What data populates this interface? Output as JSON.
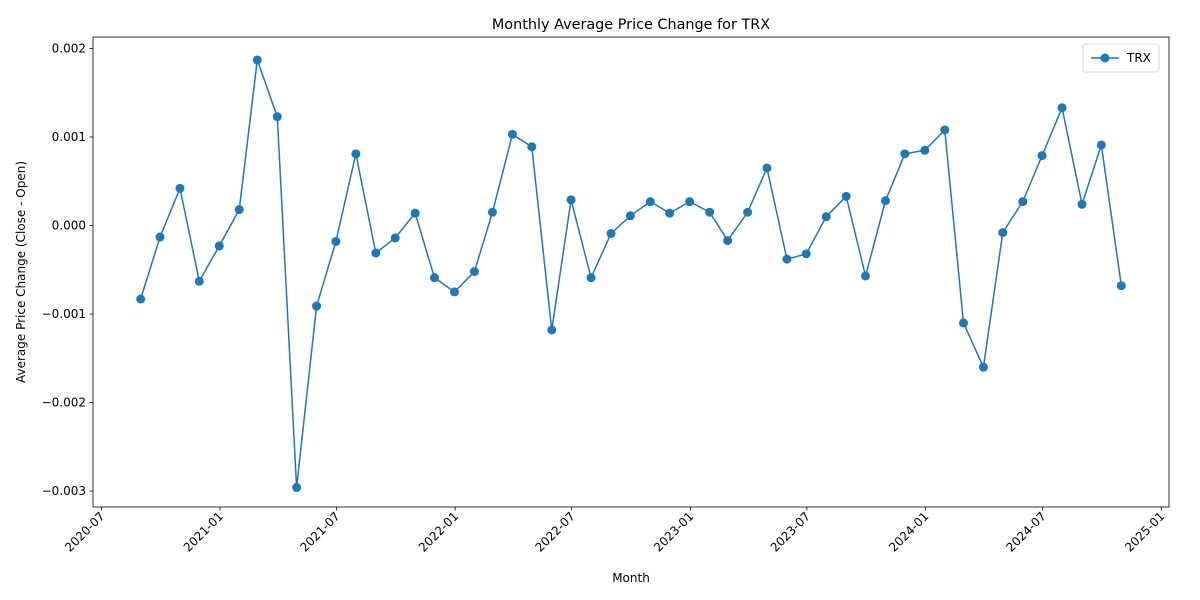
{
  "chart_data": {
    "type": "line",
    "title": "Monthly Average Price Change for TRX",
    "xlabel": "Month",
    "ylabel": "Average Price Change (Close - Open)",
    "x_ticks": [
      "2020-07",
      "2021-01",
      "2021-07",
      "2022-01",
      "2022-07",
      "2023-01",
      "2023-07",
      "2024-01",
      "2024-07",
      "2025-01"
    ],
    "y_ticks": [
      "−0.003",
      "−0.002",
      "−0.001",
      "0.000",
      "0.001",
      "0.002"
    ],
    "y_tick_values": [
      -0.003,
      -0.002,
      -0.001,
      0.0,
      0.001,
      0.002
    ],
    "xlim": [
      "2020-06-18",
      "2025-01-13"
    ],
    "ylim": [
      -0.00318,
      0.00213
    ],
    "legend": {
      "position": "top-right",
      "entries": [
        "TRX"
      ]
    },
    "grid": false,
    "colors": {
      "series": "#1f77b4",
      "axis": "#000000"
    },
    "series": [
      {
        "name": "TRX",
        "x": [
          "2020-08-31",
          "2020-09-30",
          "2020-10-31",
          "2020-11-30",
          "2020-12-31",
          "2021-01-31",
          "2021-02-28",
          "2021-03-31",
          "2021-04-30",
          "2021-05-31",
          "2021-06-30",
          "2021-07-31",
          "2021-08-31",
          "2021-09-30",
          "2021-10-31",
          "2021-11-30",
          "2021-12-31",
          "2022-01-31",
          "2022-02-28",
          "2022-03-31",
          "2022-04-30",
          "2022-05-31",
          "2022-06-30",
          "2022-07-31",
          "2022-08-31",
          "2022-09-30",
          "2022-10-31",
          "2022-11-30",
          "2022-12-31",
          "2023-01-31",
          "2023-02-28",
          "2023-03-31",
          "2023-04-30",
          "2023-05-31",
          "2023-06-30",
          "2023-07-31",
          "2023-08-31",
          "2023-09-30",
          "2023-10-31",
          "2023-11-30",
          "2023-12-31",
          "2024-01-31",
          "2024-02-29",
          "2024-03-31",
          "2024-04-30",
          "2024-05-31",
          "2024-06-30",
          "2024-07-31",
          "2024-08-31",
          "2024-09-30",
          "2024-10-31"
        ],
        "values": [
          -0.00083,
          -0.00013,
          0.00042,
          -0.00063,
          -0.00023,
          0.00018,
          0.00187,
          0.00123,
          -0.00296,
          -0.00091,
          -0.00018,
          0.00081,
          -0.00031,
          -0.00014,
          0.00014,
          -0.00059,
          -0.00075,
          -0.00052,
          0.00015,
          0.00103,
          0.00089,
          -0.00118,
          0.00029,
          -0.00059,
          -9e-05,
          0.00011,
          0.00027,
          0.00014,
          0.00027,
          0.00015,
          -0.00017,
          0.00015,
          0.00065,
          -0.00038,
          -0.00032,
          0.0001,
          0.00033,
          -0.00057,
          0.00028,
          0.00081,
          0.00085,
          0.00108,
          -0.0011,
          -0.0016,
          -8e-05,
          0.00027,
          0.00079,
          0.00133,
          0.00024,
          0.00091,
          -0.00068
        ]
      }
    ]
  }
}
